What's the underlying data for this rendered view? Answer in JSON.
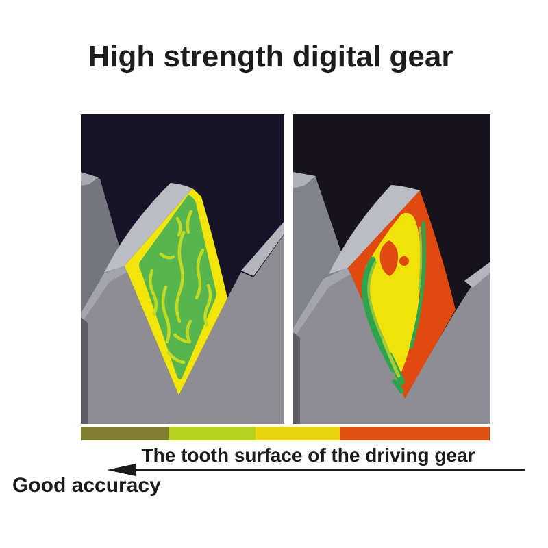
{
  "title": "High strength digital gear",
  "caption": "The tooth surface of the driving gear",
  "arrow": {
    "label": "Good accuracy",
    "direction": "left"
  },
  "colorbar": {
    "segments": [
      {
        "color": "#7e7e2e",
        "width_pct": 21.5
      },
      {
        "color": "#b5d31e",
        "width_pct": 21.2
      },
      {
        "color": "#e9d40e",
        "width_pct": 20.7
      },
      {
        "color": "#e0500e",
        "width_pct": 36.6
      }
    ]
  },
  "figure_colors": {
    "left_bg": "#171329",
    "right_bg": "#16141a",
    "gear_gray": "#8d8d93",
    "gear_gray_dark": "#75757e",
    "gear_gray_light": "#bcbcc3",
    "left_patch_border": "#f2e50a",
    "left_patch_center": "#57b54e",
    "left_squiggle": "#c3da22",
    "right_patch_border": "#e0490f",
    "right_patch_center": "#f0e20a",
    "right_streak_green": "#2ea44e",
    "right_streak_light": "#8cc63e"
  }
}
